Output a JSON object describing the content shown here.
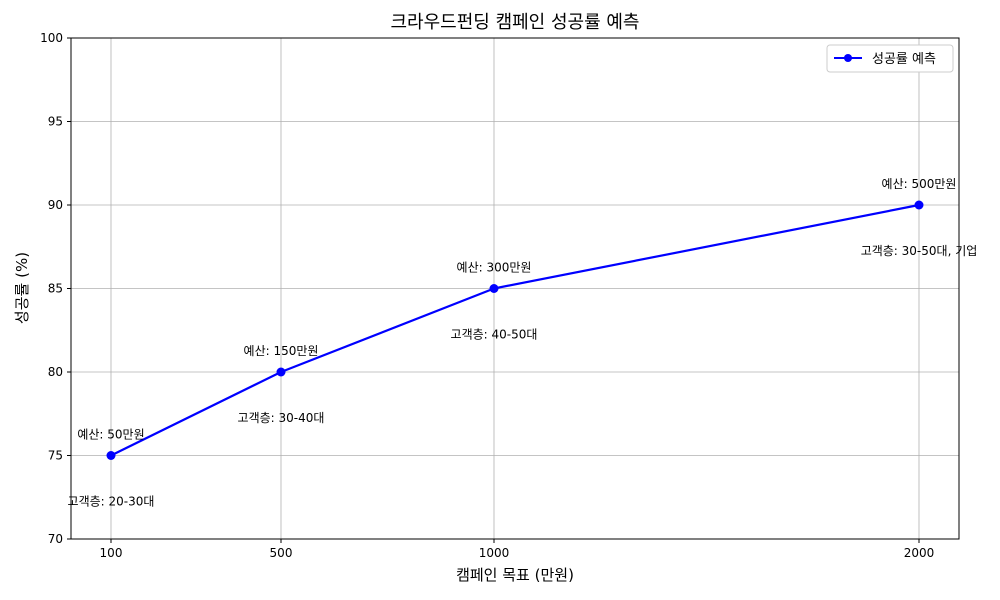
{
  "chart_data": {
    "type": "line",
    "title": "크라우드펀딩 캠페인 성공률 예측",
    "xlabel": "캠페인 목표 (만원)",
    "ylabel": "성공률 (%)",
    "x": [
      100,
      500,
      1000,
      2000
    ],
    "x_tick_labels": [
      "100",
      "500",
      "1000",
      "2000"
    ],
    "ylim": [
      70,
      100
    ],
    "y_ticks": [
      70,
      75,
      80,
      85,
      90,
      95,
      100
    ],
    "grid": true,
    "legend_position": "top-right",
    "series": [
      {
        "name": "성공률 예측",
        "color": "#0000ff",
        "marker": "circle",
        "values": [
          75,
          80,
          85,
          90
        ]
      }
    ],
    "annotations": {
      "budget": [
        "예산: 50만원",
        "예산: 150만원",
        "예산: 300만원",
        "예산: 500만원"
      ],
      "audience": [
        "고객층: 20-30대",
        "고객층: 30-40대",
        "고객층: 40-50대",
        "고객층: 30-50대, 기업"
      ]
    }
  }
}
